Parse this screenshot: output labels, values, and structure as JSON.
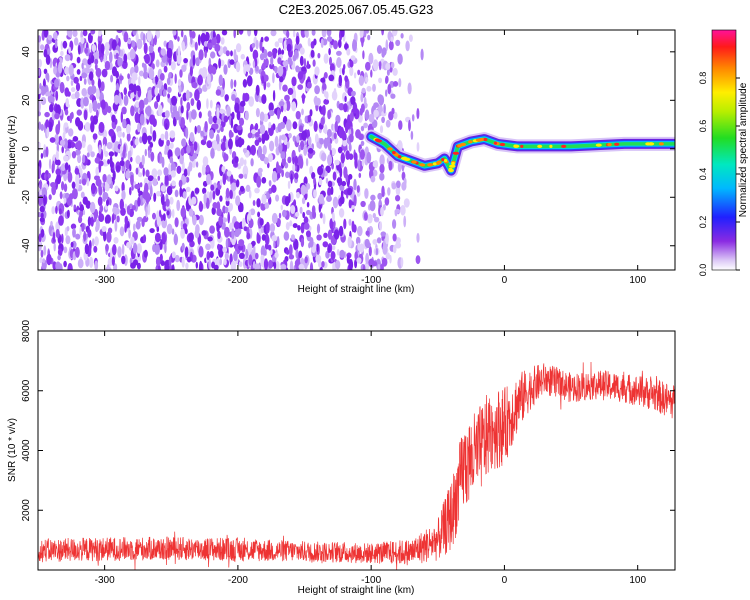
{
  "title": "C2E3.2025.067.05.45.G23",
  "chart_data": [
    {
      "type": "heatmap",
      "xlabel": "Height of straight line (km)",
      "ylabel": "Frequency (Hz)",
      "xlim": [
        -350,
        128
      ],
      "ylim": [
        -50,
        49
      ],
      "xticks": [
        -300,
        -200,
        -100,
        0,
        100
      ],
      "yticks": [
        -40,
        -20,
        0,
        20,
        40
      ],
      "colorbar": {
        "label": "Normalized spectral amplitude",
        "range": [
          0,
          1
        ],
        "ticks": [
          "0.0",
          "0.2",
          "0.4",
          "0.6",
          "0.8"
        ],
        "colormap": "rainbow"
      },
      "ridge": [
        {
          "x": -100,
          "y": 5
        },
        {
          "x": -90,
          "y": 2
        },
        {
          "x": -80,
          "y": -3
        },
        {
          "x": -70,
          "y": -5
        },
        {
          "x": -60,
          "y": -7
        },
        {
          "x": -50,
          "y": -6
        },
        {
          "x": -45,
          "y": -4
        },
        {
          "x": -40,
          "y": -9
        },
        {
          "x": -35,
          "y": 1
        },
        {
          "x": -25,
          "y": 3
        },
        {
          "x": -15,
          "y": 4
        },
        {
          "x": -5,
          "y": 2
        },
        {
          "x": 10,
          "y": 1
        },
        {
          "x": 50,
          "y": 1
        },
        {
          "x": 90,
          "y": 2
        },
        {
          "x": 128,
          "y": 2
        }
      ]
    },
    {
      "type": "line",
      "xlabel": "Height of straight line (km)",
      "ylabel": "SNR (10 * v/v)",
      "xlim": [
        -350,
        128
      ],
      "ylim": [
        0,
        8000
      ],
      "xticks": [
        -300,
        -200,
        -100,
        0,
        100
      ],
      "yticks": [
        2000,
        4000,
        6000,
        8000
      ],
      "color": "#ee3333",
      "series": [
        {
          "x": [
            -350,
            -300,
            -250,
            -200,
            -150,
            -100,
            -70,
            -50,
            -40,
            -30,
            -20,
            -10,
            0,
            10,
            20,
            30,
            50,
            70,
            90,
            110,
            128
          ],
          "y": [
            650,
            700,
            720,
            680,
            620,
            560,
            600,
            1000,
            1800,
            3500,
            3900,
            4700,
            4800,
            5600,
            6100,
            6400,
            6100,
            6200,
            6100,
            5900,
            5600
          ],
          "amplitude": [
            400,
            400,
            400,
            400,
            350,
            350,
            450,
            700,
            1200,
            1500,
            1500,
            1400,
            1300,
            1000,
            700,
            550,
            500,
            500,
            500,
            550,
            600
          ]
        }
      ]
    }
  ]
}
